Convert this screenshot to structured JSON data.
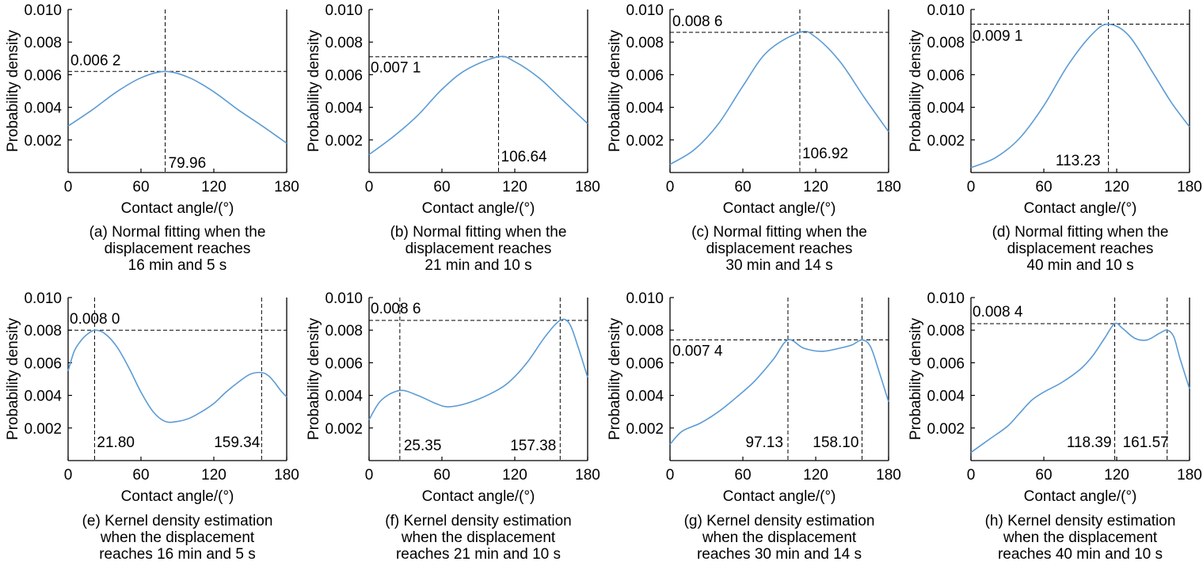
{
  "chart_data": [
    {
      "type": "line",
      "panel": "a",
      "curve": "normal",
      "mean": 79.96,
      "peak": 0.0062,
      "xlim": [
        0,
        180
      ],
      "ylim": [
        0,
        0.01
      ],
      "x_ticks": [
        "0",
        "60",
        "120",
        "180"
      ],
      "y_ticks": [
        "0.002",
        "0.004",
        "0.006",
        "0.008",
        "0.010"
      ],
      "xlabel": "Contact angle/(°)",
      "ylabel": "Probability density",
      "peak_value_labels": [
        "0.006 2"
      ],
      "peak_position_labels": [
        "79.96"
      ],
      "caption": [
        "(a) Normal fitting when the",
        "displacement reaches",
        "16 min and 5 s"
      ],
      "series": [
        {
          "x": [
            0,
            20,
            40,
            60,
            79.96,
            100,
            120,
            140,
            160,
            180
          ],
          "y": [
            0.00285,
            0.00385,
            0.00495,
            0.00581,
            0.0062,
            0.00581,
            0.00495,
            0.00385,
            0.00285,
            0.0018
          ]
        }
      ]
    },
    {
      "type": "line",
      "panel": "b",
      "curve": "normal",
      "mean": 106.64,
      "peak": 0.0071,
      "xlim": [
        0,
        180
      ],
      "ylim": [
        0,
        0.01
      ],
      "x_ticks": [
        "0",
        "60",
        "120",
        "180"
      ],
      "y_ticks": [
        "0.002",
        "0.004",
        "0.006",
        "0.008",
        "0.010"
      ],
      "xlabel": "Contact angle/(°)",
      "ylabel": "Probability density",
      "peak_value_labels": [
        "0.007 1"
      ],
      "peak_position_labels": [
        "106.64"
      ],
      "caption": [
        "(b) Normal fitting when the",
        "displacement reaches",
        "21 min and 10 s"
      ],
      "series": [
        {
          "x": [
            0,
            20,
            40,
            60,
            80,
            106.64,
            120,
            140,
            160,
            180
          ],
          "y": [
            0.0011,
            0.0022,
            0.0035,
            0.0051,
            0.0063,
            0.0071,
            0.0068,
            0.0058,
            0.0044,
            0.003
          ]
        }
      ]
    },
    {
      "type": "line",
      "panel": "c",
      "curve": "normal",
      "mean": 106.92,
      "peak": 0.0086,
      "xlim": [
        0,
        180
      ],
      "ylim": [
        0,
        0.01
      ],
      "x_ticks": [
        "0",
        "60",
        "120",
        "180"
      ],
      "y_ticks": [
        "0.002",
        "0.004",
        "0.006",
        "0.008",
        "0.010"
      ],
      "xlabel": "Contact angle/(°)",
      "ylabel": "Probability density",
      "peak_value_labels": [
        "0.008 6"
      ],
      "peak_position_labels": [
        "106.92"
      ],
      "caption": [
        "(c) Normal fitting when the",
        "displacement reaches",
        "30 min and 14 s"
      ],
      "series": [
        {
          "x": [
            0,
            20,
            40,
            60,
            80,
            106.92,
            120,
            140,
            160,
            180
          ],
          "y": [
            0.0005,
            0.0014,
            0.003,
            0.0053,
            0.0074,
            0.0086,
            0.0083,
            0.0068,
            0.0046,
            0.0025
          ]
        }
      ]
    },
    {
      "type": "line",
      "panel": "d",
      "curve": "normal",
      "mean": 113.23,
      "peak": 0.0091,
      "xlim": [
        0,
        180
      ],
      "ylim": [
        0,
        0.01
      ],
      "x_ticks": [
        "0",
        "60",
        "120",
        "180"
      ],
      "y_ticks": [
        "0.002",
        "0.004",
        "0.006",
        "0.008",
        "0.010"
      ],
      "xlabel": "Contact angle/(°)",
      "ylabel": "Probability density",
      "peak_value_labels": [
        "0.009 1"
      ],
      "peak_position_labels": [
        "113.23"
      ],
      "caption": [
        "(d) Normal fitting when the",
        "displacement reaches",
        "40 min and 10 s"
      ],
      "series": [
        {
          "x": [
            0,
            20,
            40,
            60,
            80,
            100,
            113.23,
            130,
            150,
            165,
            180
          ],
          "y": [
            0.0003,
            0.0009,
            0.0021,
            0.0041,
            0.0066,
            0.0085,
            0.0091,
            0.0084,
            0.0061,
            0.0043,
            0.0028
          ]
        }
      ]
    },
    {
      "type": "line",
      "panel": "e",
      "curve": "kde",
      "peaks_x": [
        21.8,
        159.34
      ],
      "peak": 0.008,
      "xlim": [
        0,
        180
      ],
      "ylim": [
        0,
        0.01
      ],
      "x_ticks": [
        "0",
        "60",
        "120",
        "180"
      ],
      "y_ticks": [
        "0.002",
        "0.004",
        "0.006",
        "0.008",
        "0.010"
      ],
      "xlabel": "Contact angle/(°)",
      "ylabel": "Probability density",
      "peak_value_labels": [
        "0.008 0"
      ],
      "peak_position_labels": [
        "21.80",
        "159.34"
      ],
      "caption": [
        "(e) Kernel density estimation",
        "when the displacement",
        "reaches 16 min and 5 s"
      ],
      "series": [
        {
          "x": [
            0,
            5,
            10,
            15,
            21.8,
            30,
            40,
            50,
            60,
            70,
            80,
            90,
            100,
            110,
            120,
            130,
            140,
            150,
            159.34,
            165,
            170,
            175,
            180
          ],
          "y": [
            0.0055,
            0.0067,
            0.0073,
            0.0077,
            0.008,
            0.0078,
            0.007,
            0.0057,
            0.0042,
            0.003,
            0.0024,
            0.0024,
            0.0026,
            0.003,
            0.0035,
            0.0042,
            0.0048,
            0.0053,
            0.0054,
            0.0052,
            0.0048,
            0.0043,
            0.0039
          ]
        }
      ]
    },
    {
      "type": "line",
      "panel": "f",
      "curve": "kde",
      "peaks_x": [
        25.35,
        157.38
      ],
      "peak": 0.0086,
      "xlim": [
        0,
        180
      ],
      "ylim": [
        0,
        0.01
      ],
      "x_ticks": [
        "0",
        "60",
        "120",
        "180"
      ],
      "y_ticks": [
        "0.002",
        "0.004",
        "0.006",
        "0.008",
        "0.010"
      ],
      "xlabel": "Contact angle/(°)",
      "ylabel": "Probability density",
      "peak_value_labels": [
        "0.008 6"
      ],
      "peak_position_labels": [
        "25.35",
        "157.38"
      ],
      "caption": [
        "(f) Kernel density estimation",
        "when the displacement",
        "reaches 21 min and 10 s"
      ],
      "series": [
        {
          "x": [
            0,
            10,
            25.35,
            40,
            55,
            65,
            80,
            100,
            115,
            130,
            145,
            157.38,
            165,
            172,
            180
          ],
          "y": [
            0.0025,
            0.0037,
            0.0043,
            0.004,
            0.0035,
            0.0033,
            0.0035,
            0.0041,
            0.0048,
            0.006,
            0.0076,
            0.0086,
            0.0084,
            0.007,
            0.0051
          ]
        }
      ]
    },
    {
      "type": "line",
      "panel": "g",
      "curve": "kde",
      "peaks_x": [
        97.13,
        158.1
      ],
      "peak": 0.0074,
      "xlim": [
        0,
        180
      ],
      "ylim": [
        0,
        0.01
      ],
      "x_ticks": [
        "0",
        "60",
        "120",
        "180"
      ],
      "y_ticks": [
        "0.002",
        "0.004",
        "0.006",
        "0.008",
        "0.010"
      ],
      "xlabel": "Contact angle/(°)",
      "ylabel": "Probability density",
      "peak_value_labels": [
        "0.007 4"
      ],
      "peak_position_labels": [
        "97.13",
        "158.10"
      ],
      "caption": [
        "(g) Kernel density estimation",
        "when the displacement",
        "reaches 30 min and 14 s"
      ],
      "series": [
        {
          "x": [
            0,
            10,
            25,
            40,
            55,
            70,
            85,
            97.13,
            110,
            125,
            140,
            150,
            158.1,
            165,
            172,
            180
          ],
          "y": [
            0.001,
            0.0018,
            0.0023,
            0.003,
            0.0039,
            0.0049,
            0.0062,
            0.0074,
            0.0069,
            0.0067,
            0.0069,
            0.0071,
            0.0074,
            0.007,
            0.0055,
            0.0036
          ]
        }
      ]
    },
    {
      "type": "line",
      "panel": "h",
      "curve": "kde",
      "peaks_x": [
        118.39,
        161.57
      ],
      "peak": 0.0084,
      "xlim": [
        0,
        180
      ],
      "ylim": [
        0,
        0.01
      ],
      "x_ticks": [
        "0",
        "60",
        "120",
        "180"
      ],
      "y_ticks": [
        "0.002",
        "0.004",
        "0.006",
        "0.008",
        "0.010"
      ],
      "xlabel": "Contact angle/(°)",
      "ylabel": "Probability density",
      "peak_value_labels": [
        "0.008 4"
      ],
      "peak_position_labels": [
        "118.39",
        "161.57"
      ],
      "caption": [
        "(h) Kernel density estimation",
        "when the displacement",
        "reaches 40 min and 10 s"
      ],
      "series": [
        {
          "x": [
            0,
            15,
            30,
            40,
            50,
            60,
            75,
            90,
            100,
            110,
            118.39,
            125,
            135,
            145,
            155,
            161.57,
            167,
            172,
            180
          ],
          "y": [
            0.0005,
            0.0013,
            0.0021,
            0.0029,
            0.0037,
            0.0042,
            0.0048,
            0.0056,
            0.0064,
            0.0075,
            0.0084,
            0.0081,
            0.0075,
            0.0074,
            0.0078,
            0.008,
            0.0076,
            0.0063,
            0.0044
          ]
        }
      ]
    }
  ]
}
